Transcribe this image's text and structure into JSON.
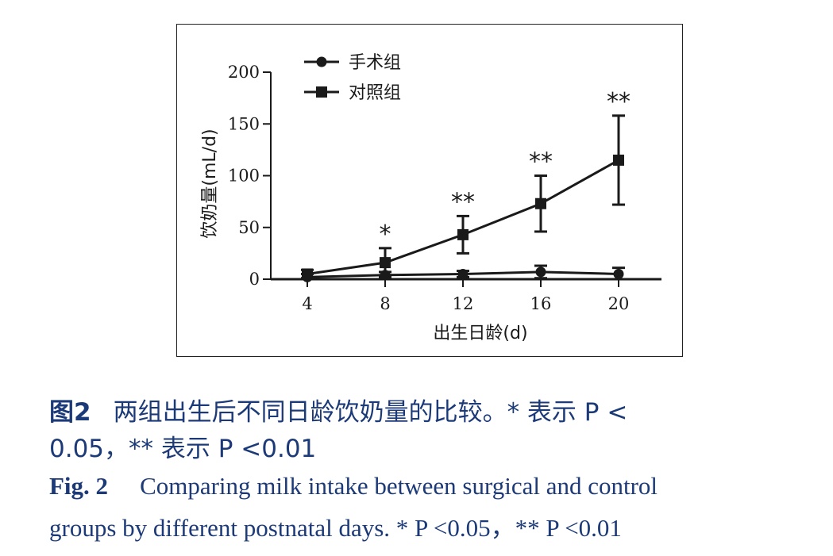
{
  "chart_data": {
    "type": "line",
    "xlabel": "出生日龄(d)",
    "ylabel": "饮奶量(mL/d)",
    "x": [
      4,
      8,
      12,
      16,
      20
    ],
    "xticks": [
      "4",
      "8",
      "12",
      "16",
      "20"
    ],
    "yticks": [
      "0",
      "50",
      "100",
      "150",
      "200"
    ],
    "ylim": [
      0,
      200
    ],
    "legend_position": "top-left",
    "grid": false,
    "series": [
      {
        "name": "手术组",
        "marker": "circle",
        "values": [
          2,
          4,
          5,
          7,
          5
        ],
        "error": [
          3,
          3,
          3,
          6,
          6
        ]
      },
      {
        "name": "对照组",
        "marker": "square",
        "values": [
          5,
          16,
          43,
          73,
          115
        ],
        "error": [
          4,
          14,
          18,
          27,
          43
        ]
      }
    ],
    "annotations": [
      {
        "x": 8,
        "text": "*"
      },
      {
        "x": 12,
        "text": "**"
      },
      {
        "x": 16,
        "text": "**"
      },
      {
        "x": 20,
        "text": "**"
      }
    ]
  },
  "caption": {
    "cn_label": "图2",
    "cn_text_1": "两组出生后不同日龄饮奶量的比较。* 表示 P <",
    "cn_text_2": "0.05，** 表示 P <0.01",
    "en_label": "Fig. 2",
    "en_text_1": "Comparing milk intake between surgical and control",
    "en_text_2": "groups by different postnatal days. * P <0.05，** P <0.01"
  },
  "colors": {
    "ink": "#1a1a1a",
    "caption": "#1c3a78"
  }
}
